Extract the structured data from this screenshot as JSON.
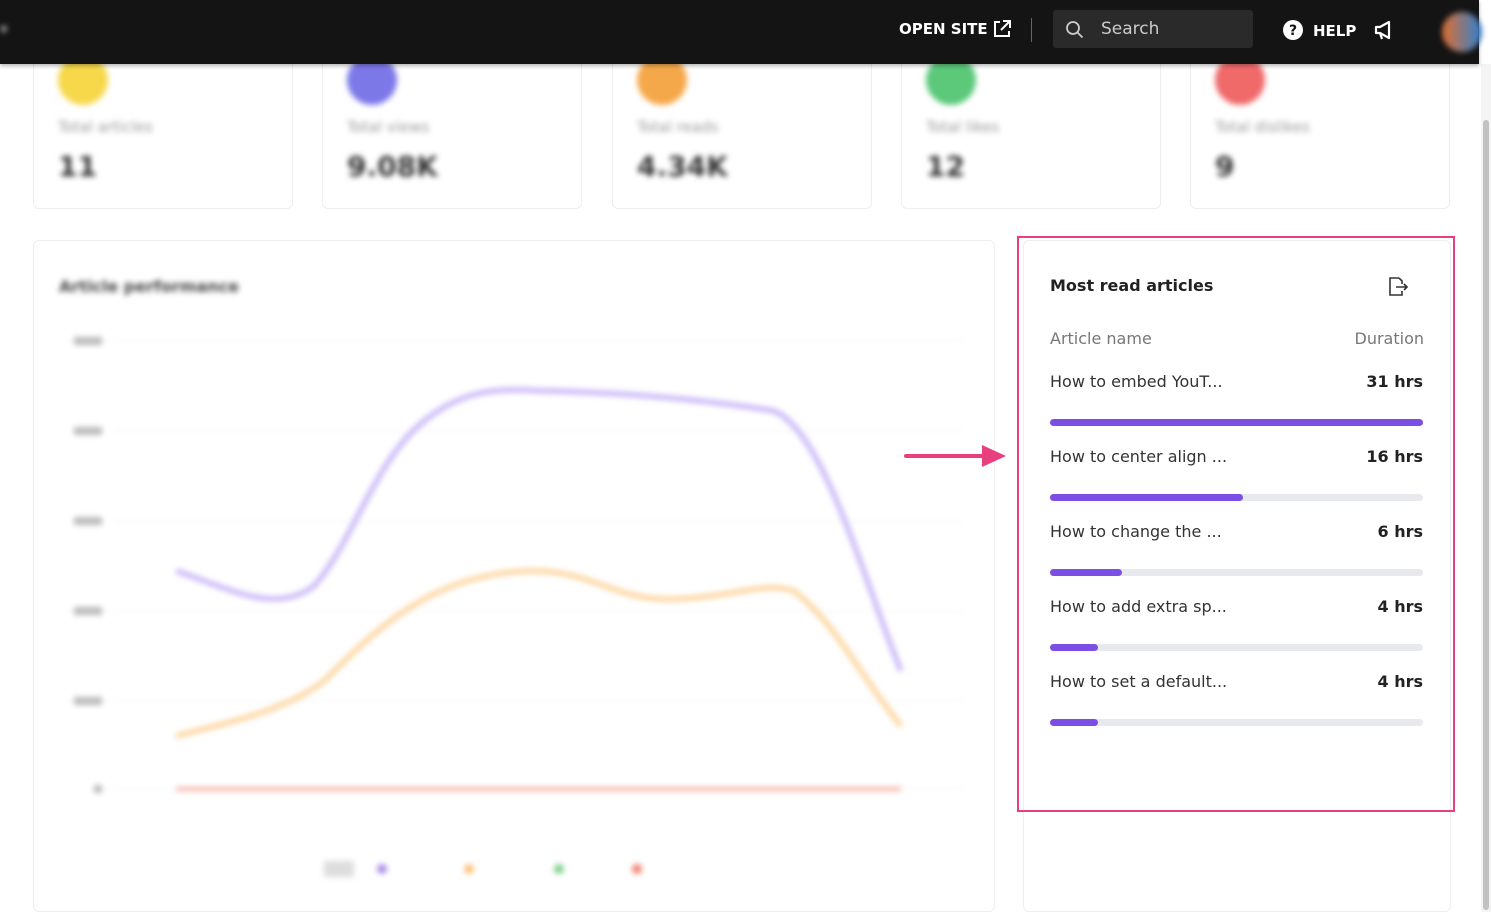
{
  "header": {
    "open_site": "OPEN SITE",
    "search_placeholder": "Search",
    "help": "HELP"
  },
  "stats": [
    {
      "label": "Total articles",
      "value": "11"
    },
    {
      "label": "Total views",
      "value": "9.08K"
    },
    {
      "label": "Total reads",
      "value": "4.34K"
    },
    {
      "label": "Total likes",
      "value": "12"
    },
    {
      "label": "Total dislikes",
      "value": "9"
    }
  ],
  "performance": {
    "title": "Article performance"
  },
  "most_read": {
    "title": "Most read articles",
    "columns": [
      "Article name",
      "Duration"
    ],
    "articles": [
      {
        "name": "How to embed YouT...",
        "duration": 31,
        "duration_label": "31 hrs"
      },
      {
        "name": "How to center align ...",
        "duration": 16,
        "duration_label": "16 hrs"
      },
      {
        "name": "How to change the ...",
        "duration": 6,
        "duration_label": "6 hrs"
      },
      {
        "name": "How to add extra sp...",
        "duration": 4,
        "duration_label": "4 hrs"
      },
      {
        "name": "How to set a default...",
        "duration": 4,
        "duration_label": "4 hrs"
      }
    ]
  }
}
